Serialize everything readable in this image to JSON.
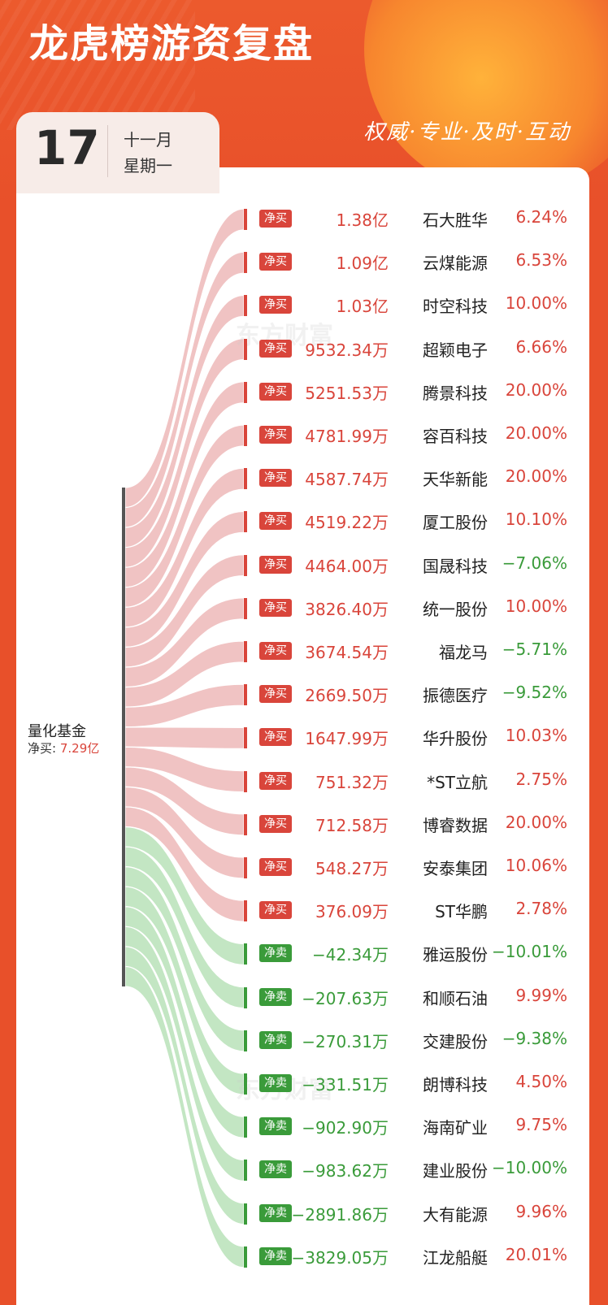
{
  "header": {
    "title": "龙虎榜游资复盘",
    "slogan": "权威·专业·及时·互动",
    "day": "17",
    "month": "十一月",
    "weekday": "星期一",
    "watermark": "东方财富"
  },
  "colors": {
    "buy": "#d9453b",
    "sell": "#3a9b3a",
    "buy_flow": "#f0c3c3",
    "sell_flow": "#c3e6c3"
  },
  "source": {
    "name": "量化基金",
    "net_label": "净买:",
    "net_value": "7.29亿"
  },
  "rows": [
    {
      "side": "buy",
      "badge": "净买",
      "amount": "1.38亿",
      "name": "石大胜华",
      "pct": "6.24%",
      "pct_dir": "up"
    },
    {
      "side": "buy",
      "badge": "净买",
      "amount": "1.09亿",
      "name": "云煤能源",
      "pct": "6.53%",
      "pct_dir": "up"
    },
    {
      "side": "buy",
      "badge": "净买",
      "amount": "1.03亿",
      "name": "时空科技",
      "pct": "10.00%",
      "pct_dir": "up"
    },
    {
      "side": "buy",
      "badge": "净买",
      "amount": "9532.34万",
      "name": "超颖电子",
      "pct": "6.66%",
      "pct_dir": "up"
    },
    {
      "side": "buy",
      "badge": "净买",
      "amount": "5251.53万",
      "name": "腾景科技",
      "pct": "20.00%",
      "pct_dir": "up"
    },
    {
      "side": "buy",
      "badge": "净买",
      "amount": "4781.99万",
      "name": "容百科技",
      "pct": "20.00%",
      "pct_dir": "up"
    },
    {
      "side": "buy",
      "badge": "净买",
      "amount": "4587.74万",
      "name": "天华新能",
      "pct": "20.00%",
      "pct_dir": "up"
    },
    {
      "side": "buy",
      "badge": "净买",
      "amount": "4519.22万",
      "name": "厦工股份",
      "pct": "10.10%",
      "pct_dir": "up"
    },
    {
      "side": "buy",
      "badge": "净买",
      "amount": "4464.00万",
      "name": "国晟科技",
      "pct": "−7.06%",
      "pct_dir": "down"
    },
    {
      "side": "buy",
      "badge": "净买",
      "amount": "3826.40万",
      "name": "统一股份",
      "pct": "10.00%",
      "pct_dir": "up"
    },
    {
      "side": "buy",
      "badge": "净买",
      "amount": "3674.54万",
      "name": "福龙马",
      "pct": "−5.71%",
      "pct_dir": "down"
    },
    {
      "side": "buy",
      "badge": "净买",
      "amount": "2669.50万",
      "name": "振德医疗",
      "pct": "−9.52%",
      "pct_dir": "down"
    },
    {
      "side": "buy",
      "badge": "净买",
      "amount": "1647.99万",
      "name": "华升股份",
      "pct": "10.03%",
      "pct_dir": "up"
    },
    {
      "side": "buy",
      "badge": "净买",
      "amount": "751.32万",
      "name": "*ST立航",
      "pct": "2.75%",
      "pct_dir": "up"
    },
    {
      "side": "buy",
      "badge": "净买",
      "amount": "712.58万",
      "name": "博睿数据",
      "pct": "20.00%",
      "pct_dir": "up"
    },
    {
      "side": "buy",
      "badge": "净买",
      "amount": "548.27万",
      "name": "安泰集团",
      "pct": "10.06%",
      "pct_dir": "up"
    },
    {
      "side": "buy",
      "badge": "净买",
      "amount": "376.09万",
      "name": "ST华鹏",
      "pct": "2.78%",
      "pct_dir": "up"
    },
    {
      "side": "sell",
      "badge": "净卖",
      "amount": "−42.34万",
      "name": "雅运股份",
      "pct": "−10.01%",
      "pct_dir": "down"
    },
    {
      "side": "sell",
      "badge": "净卖",
      "amount": "−207.63万",
      "name": "和顺石油",
      "pct": "9.99%",
      "pct_dir": "up"
    },
    {
      "side": "sell",
      "badge": "净卖",
      "amount": "−270.31万",
      "name": "交建股份",
      "pct": "−9.38%",
      "pct_dir": "down"
    },
    {
      "side": "sell",
      "badge": "净卖",
      "amount": "−331.51万",
      "name": "朗博科技",
      "pct": "4.50%",
      "pct_dir": "up"
    },
    {
      "side": "sell",
      "badge": "净卖",
      "amount": "−902.90万",
      "name": "海南矿业",
      "pct": "9.75%",
      "pct_dir": "up"
    },
    {
      "side": "sell",
      "badge": "净卖",
      "amount": "−983.62万",
      "name": "建业股份",
      "pct": "−10.00%",
      "pct_dir": "down"
    },
    {
      "side": "sell",
      "badge": "净卖",
      "amount": "−2891.86万",
      "name": "大有能源",
      "pct": "9.96%",
      "pct_dir": "up"
    },
    {
      "side": "sell",
      "badge": "净卖",
      "amount": "−3829.05万",
      "name": "江龙船艇",
      "pct": "20.01%",
      "pct_dir": "up"
    }
  ]
}
